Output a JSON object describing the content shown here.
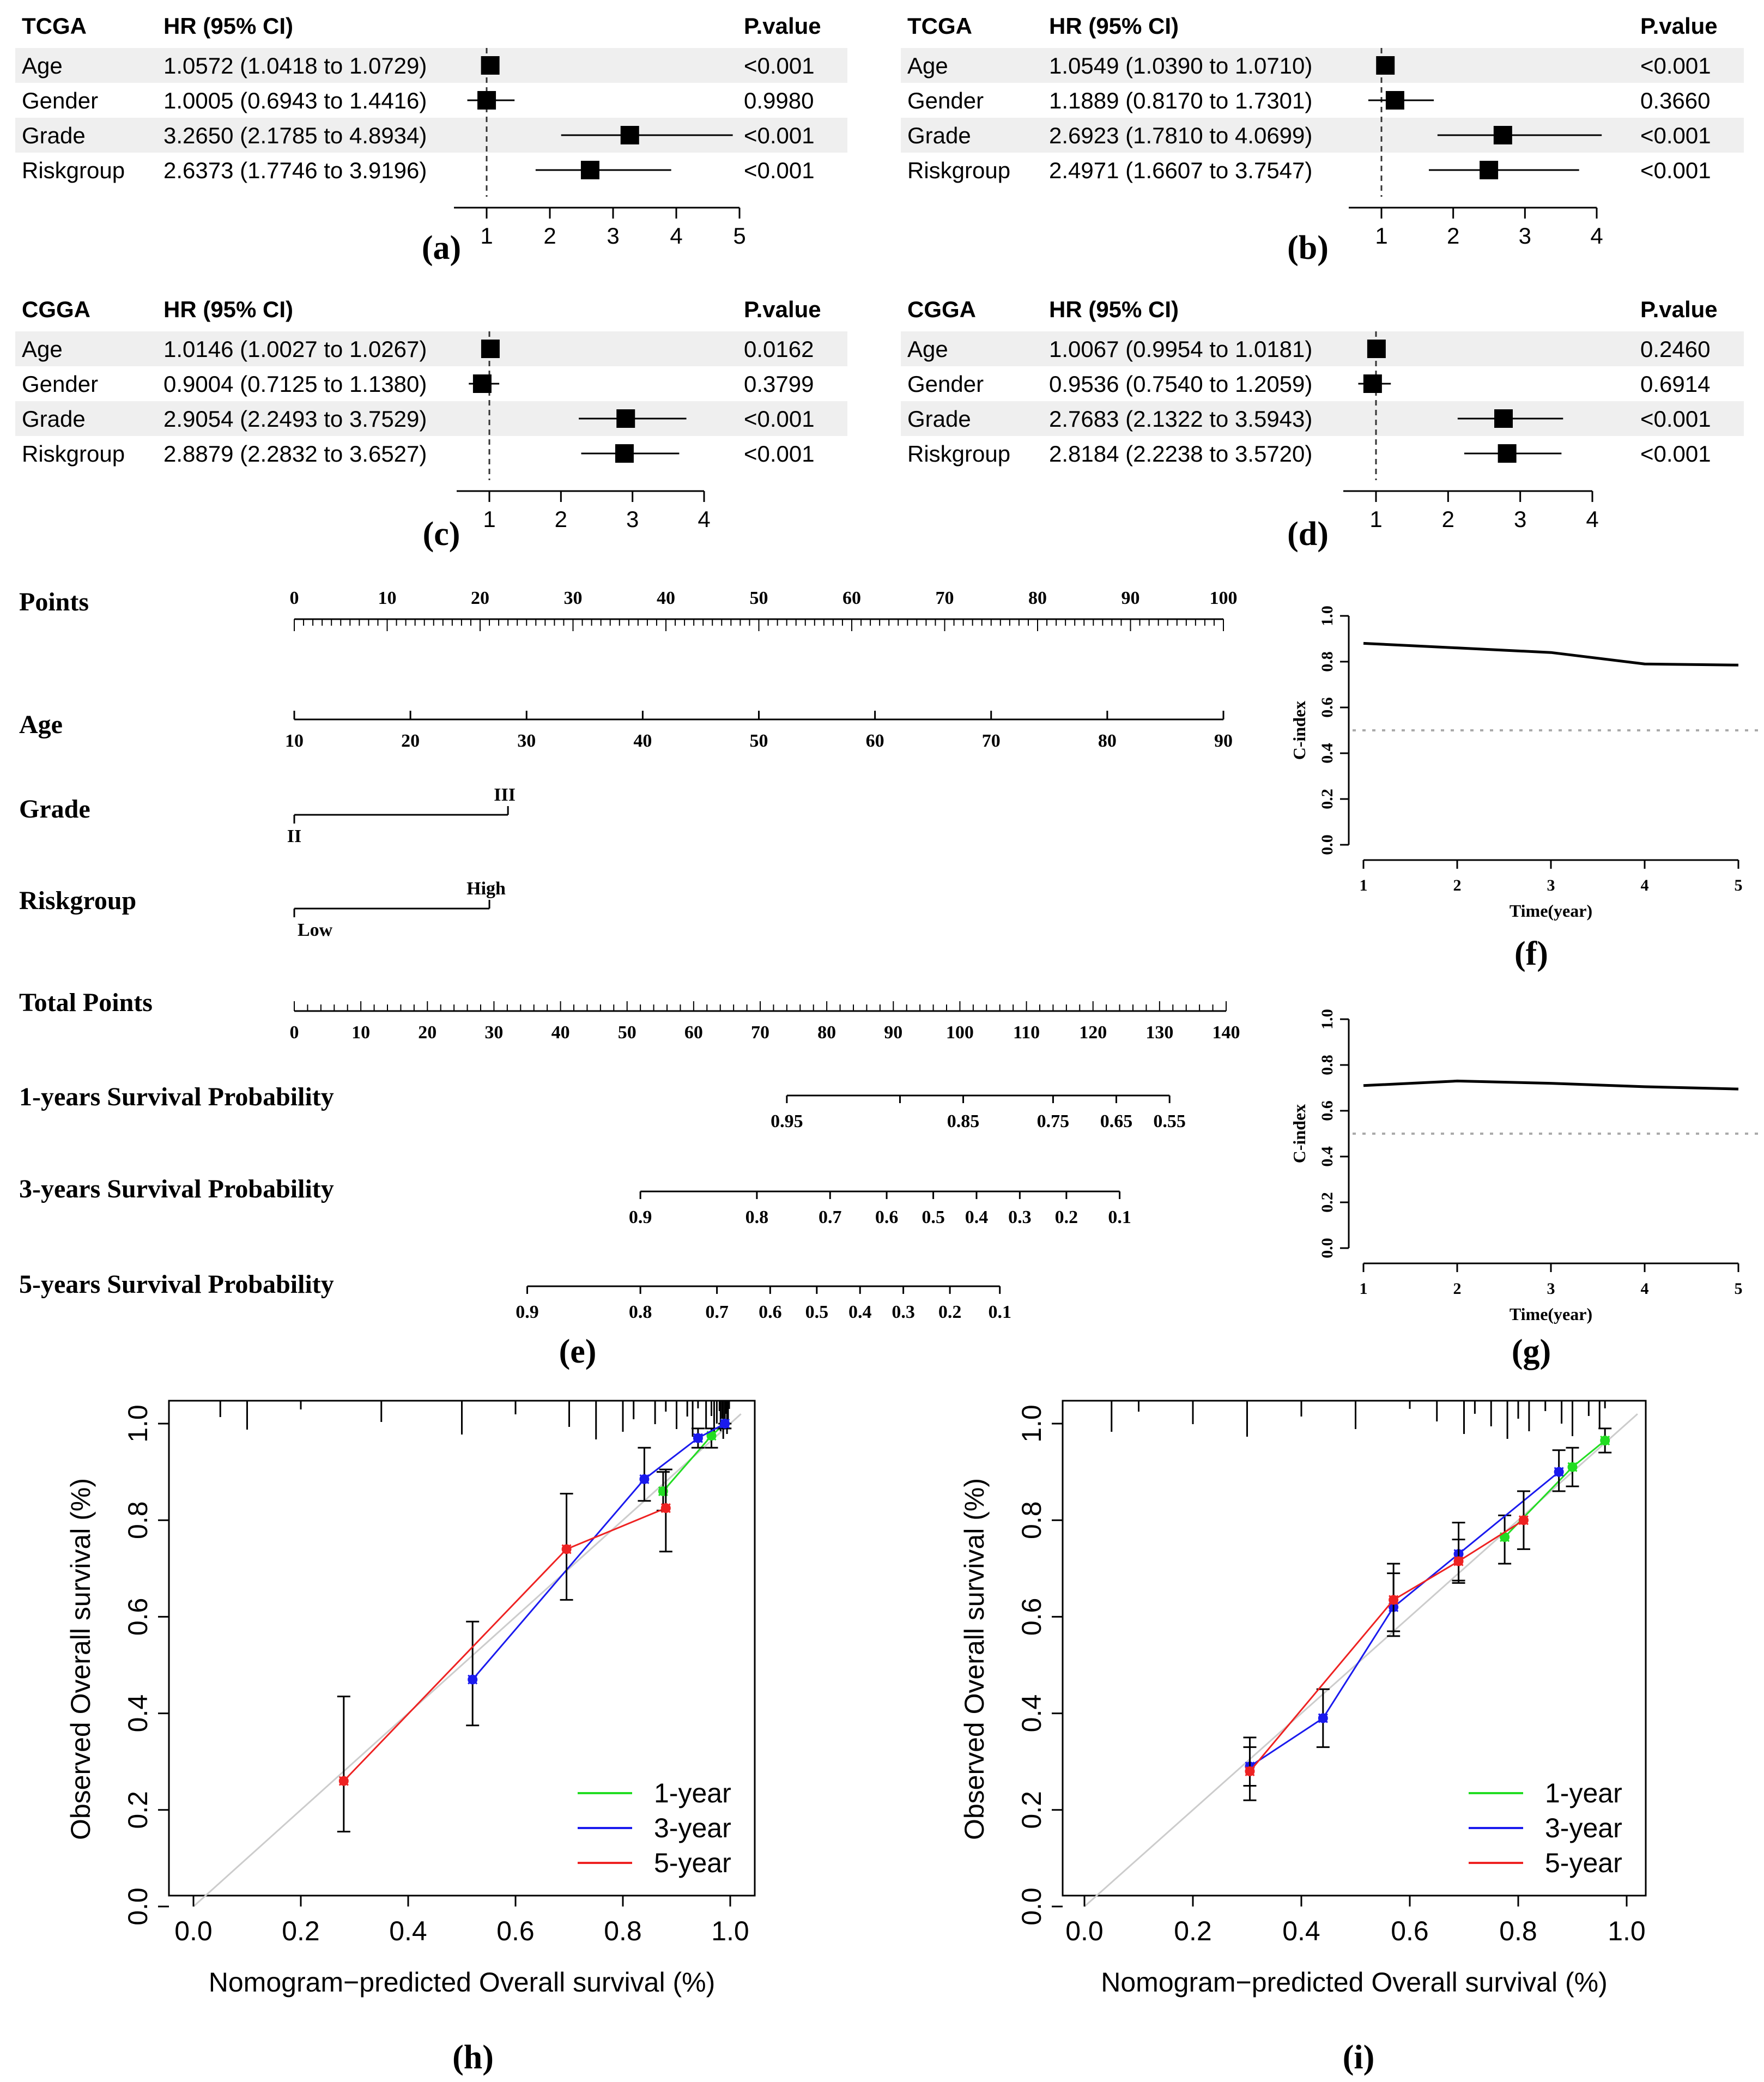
{
  "panel_labels": {
    "a": "(a)",
    "b": "(b)",
    "c": "(c)",
    "d": "(d)",
    "e": "(e)",
    "f": "(f)",
    "g": "(g)",
    "h": "(h)",
    "i": "(i)"
  },
  "colors": {
    "band": "#efefef",
    "one_year": "#22dd22",
    "three_year": "#1a1aee",
    "five_year": "#ee2222",
    "diag": "#cccccc",
    "marker": "#000000"
  },
  "chart_data": [
    {
      "id": "a",
      "type": "forest",
      "cohort": "TCGA",
      "hr_header": "HR (95% CI)",
      "p_header": "P.value",
      "axis": {
        "min": 1,
        "max": 5,
        "ticks": [
          1,
          2,
          3,
          4,
          5
        ],
        "ref": 1
      },
      "rows": [
        {
          "name": "Age",
          "hr_text": "1.0572 (1.0418 to 1.0729)",
          "p": "<0.001",
          "hr": 1.0572,
          "lo": 1.0418,
          "hi": 1.0729
        },
        {
          "name": "Gender",
          "hr_text": "1.0005 (0.6943 to 1.4416)",
          "p": "0.9980",
          "hr": 1.0005,
          "lo": 0.6943,
          "hi": 1.4416
        },
        {
          "name": "Grade",
          "hr_text": "3.2650 (2.1785 to 4.8934)",
          "p": "<0.001",
          "hr": 3.265,
          "lo": 2.1785,
          "hi": 4.8934
        },
        {
          "name": "Riskgroup",
          "hr_text": "2.6373 (1.7746 to 3.9196)",
          "p": "<0.001",
          "hr": 2.6373,
          "lo": 1.7746,
          "hi": 3.9196
        }
      ]
    },
    {
      "id": "b",
      "type": "forest",
      "cohort": "TCGA",
      "hr_header": "HR (95% CI)",
      "p_header": "P.value",
      "axis": {
        "min": 1,
        "max": 4,
        "ticks": [
          1,
          2,
          3,
          4
        ],
        "ref": 1
      },
      "rows": [
        {
          "name": "Age",
          "hr_text": "1.0549 (1.0390 to 1.0710)",
          "p": "<0.001",
          "hr": 1.0549,
          "lo": 1.039,
          "hi": 1.071
        },
        {
          "name": "Gender",
          "hr_text": "1.1889 (0.8170 to 1.7301)",
          "p": "0.3660",
          "hr": 1.1889,
          "lo": 0.817,
          "hi": 1.7301
        },
        {
          "name": "Grade",
          "hr_text": "2.6923 (1.7810 to 4.0699)",
          "p": "<0.001",
          "hr": 2.6923,
          "lo": 1.781,
          "hi": 4.0699
        },
        {
          "name": "Riskgroup",
          "hr_text": "2.4971 (1.6607 to 3.7547)",
          "p": "<0.001",
          "hr": 2.4971,
          "lo": 1.6607,
          "hi": 3.7547
        }
      ]
    },
    {
      "id": "c",
      "type": "forest",
      "cohort": "CGGA",
      "hr_header": "HR (95% CI)",
      "p_header": "P.value",
      "axis": {
        "min": 1,
        "max": 4,
        "ticks": [
          1,
          2,
          3,
          4
        ],
        "ref": 1
      },
      "rows": [
        {
          "name": "Age",
          "hr_text": "1.0146 (1.0027 to 1.0267)",
          "p": "0.0162",
          "hr": 1.0146,
          "lo": 1.0027,
          "hi": 1.0267
        },
        {
          "name": "Gender",
          "hr_text": "0.9004 (0.7125 to 1.1380)",
          "p": "0.3799",
          "hr": 0.9004,
          "lo": 0.7125,
          "hi": 1.138
        },
        {
          "name": "Grade",
          "hr_text": "2.9054 (2.2493 to 3.7529)",
          "p": "<0.001",
          "hr": 2.9054,
          "lo": 2.2493,
          "hi": 3.7529
        },
        {
          "name": "Riskgroup",
          "hr_text": "2.8879 (2.2832 to 3.6527)",
          "p": "<0.001",
          "hr": 2.8879,
          "lo": 2.2832,
          "hi": 3.6527
        }
      ]
    },
    {
      "id": "d",
      "type": "forest",
      "cohort": "CGGA",
      "hr_header": "HR (95% CI)",
      "p_header": "P.value",
      "axis": {
        "min": 1,
        "max": 4,
        "ticks": [
          1,
          2,
          3,
          4
        ],
        "ref": 1
      },
      "rows": [
        {
          "name": "Age",
          "hr_text": "1.0067 (0.9954 to 1.0181)",
          "p": "0.2460",
          "hr": 1.0067,
          "lo": 0.9954,
          "hi": 1.0181
        },
        {
          "name": "Gender",
          "hr_text": "0.9536 (0.7540 to 1.2059)",
          "p": "0.6914",
          "hr": 0.9536,
          "lo": 0.754,
          "hi": 1.2059
        },
        {
          "name": "Grade",
          "hr_text": "2.7683 (2.1322 to 3.5943)",
          "p": "<0.001",
          "hr": 2.7683,
          "lo": 2.1322,
          "hi": 3.5943
        },
        {
          "name": "Riskgroup",
          "hr_text": "2.8184 (2.2238 to 3.5720)",
          "p": "<0.001",
          "hr": 2.8184,
          "lo": 2.2238,
          "hi": 3.572
        }
      ]
    },
    {
      "id": "e",
      "type": "nomogram",
      "points_range": [
        0,
        100
      ],
      "rows": [
        {
          "label": "Points",
          "kind": "points",
          "ticks": [
            0,
            10,
            20,
            30,
            40,
            50,
            60,
            70,
            80,
            90,
            100
          ]
        },
        {
          "label": "Age",
          "kind": "age",
          "points_range": [
            0,
            100
          ],
          "labels": [
            10,
            20,
            30,
            40,
            50,
            60,
            70,
            80,
            90
          ]
        },
        {
          "label": "Grade",
          "kind": "cat",
          "points": [
            0,
            23
          ],
          "low": "II",
          "high": "III"
        },
        {
          "label": "Riskgroup",
          "kind": "cat",
          "points": [
            0,
            21
          ],
          "low": "Low",
          "high": "High"
        },
        {
          "label": "Total Points",
          "kind": "total",
          "range": [
            0,
            140
          ],
          "labels": [
            0,
            10,
            20,
            30,
            40,
            50,
            60,
            70,
            80,
            90,
            100,
            110,
            120,
            130,
            140
          ]
        },
        {
          "label": "1-years Survival Probability",
          "kind": "surv",
          "line_total": [
            74,
            131.5
          ],
          "labels": [
            "0.95",
            "0.85",
            "0.75",
            "0.65",
            "0.55"
          ],
          "label_total": [
            74,
            100.5,
            114,
            123.5,
            131.5
          ],
          "minor_total": [
            91
          ]
        },
        {
          "label": "3-years Survival Probability",
          "kind": "surv",
          "line_total": [
            52,
            124
          ],
          "labels": [
            "0.9",
            "0.8",
            "0.7",
            "0.6",
            "0.5",
            "0.4",
            "0.3",
            "0.2",
            "0.1"
          ],
          "label_total": [
            52,
            69.5,
            80.5,
            89,
            96,
            102.5,
            109,
            116,
            124
          ]
        },
        {
          "label": "5-years Survival Probability",
          "kind": "surv",
          "line_total": [
            35,
            106
          ],
          "labels": [
            "0.9",
            "0.8",
            "0.7",
            "0.6",
            "0.5",
            "0.4",
            "0.3",
            "0.2",
            "0.1"
          ],
          "label_total": [
            35,
            52,
            63.5,
            71.5,
            78.5,
            85,
            91.5,
            98.5,
            106
          ]
        }
      ]
    },
    {
      "id": "f",
      "type": "line",
      "xlabel": "Time(year)",
      "ylabel": "C-index",
      "xlim": [
        1,
        5
      ],
      "ylim": [
        0,
        1
      ],
      "x": [
        1,
        2,
        3,
        4,
        5
      ],
      "y": [
        0.88,
        0.86,
        0.84,
        0.79,
        0.785
      ],
      "reference": 0.5,
      "xticks": [
        1,
        2,
        3,
        4,
        5
      ],
      "yticks": [
        "0.0",
        "0.2",
        "0.4",
        "0.6",
        "0.8",
        "1.0"
      ]
    },
    {
      "id": "g",
      "type": "line",
      "xlabel": "Time(year)",
      "ylabel": "C-index",
      "xlim": [
        1,
        5
      ],
      "ylim": [
        0,
        1
      ],
      "x": [
        1,
        2,
        3,
        4,
        5
      ],
      "y": [
        0.71,
        0.73,
        0.72,
        0.705,
        0.695
      ],
      "reference": 0.5,
      "xticks": [
        1,
        2,
        3,
        4,
        5
      ],
      "yticks": [
        "0.0",
        "0.2",
        "0.4",
        "0.6",
        "0.8",
        "1.0"
      ]
    },
    {
      "id": "h",
      "type": "calibration",
      "xlabel": "Nomogram−predicted Overall survival (%)",
      "ylabel": "Observed Overall survival (%)",
      "xlim": [
        0,
        1
      ],
      "ylim": [
        0,
        1
      ],
      "ticks": [
        "0.0",
        "0.2",
        "0.4",
        "0.6",
        "0.8",
        "1.0"
      ],
      "legend": [
        "1-year",
        "3-year",
        "5-year"
      ],
      "series": [
        {
          "name": "1-year",
          "x": [
            0.875,
            0.965,
            0.99
          ],
          "y": [
            0.86,
            0.975,
            1.0
          ],
          "err": [
            [
              0.82,
              0.9
            ],
            [
              0.95,
              0.99
            ],
            [
              0.99,
              1.0
            ]
          ]
        },
        {
          "name": "3-year",
          "x": [
            0.52,
            0.84,
            0.94,
            0.99
          ],
          "y": [
            0.47,
            0.885,
            0.97,
            1.0
          ],
          "err": [
            [
              0.375,
              0.59
            ],
            [
              0.84,
              0.95
            ],
            [
              0.95,
              0.99
            ],
            [
              0.99,
              1.0
            ]
          ]
        },
        {
          "name": "5-year",
          "x": [
            0.28,
            0.695,
            0.88
          ],
          "y": [
            0.26,
            0.74,
            0.825
          ],
          "err": [
            [
              0.155,
              0.435
            ],
            [
              0.635,
              0.855
            ],
            [
              0.735,
              0.905
            ]
          ]
        }
      ],
      "rug": [
        0.94,
        0.955,
        0.965,
        0.97,
        0.975,
        0.98,
        0.982,
        0.985,
        0.987,
        0.99,
        0.992,
        0.994,
        0.996,
        0.998,
        0.9,
        0.92,
        0.93,
        0.86,
        0.88,
        0.8,
        0.82,
        0.75,
        0.7,
        0.6,
        0.5,
        0.35,
        0.2,
        0.1,
        0.05
      ]
    },
    {
      "id": "i",
      "type": "calibration",
      "xlabel": "Nomogram−predicted Overall survival (%)",
      "ylabel": "Observed Overall survival (%)",
      "xlim": [
        0,
        1
      ],
      "ylim": [
        0,
        1
      ],
      "ticks": [
        "0.0",
        "0.2",
        "0.4",
        "0.6",
        "0.8",
        "1.0"
      ],
      "legend": [
        "1-year",
        "3-year",
        "5-year"
      ],
      "series": [
        {
          "name": "1-year",
          "x": [
            0.775,
            0.9,
            0.96
          ],
          "y": [
            0.765,
            0.91,
            0.965
          ],
          "err": [
            [
              0.71,
              0.81
            ],
            [
              0.87,
              0.95
            ],
            [
              0.94,
              0.99
            ]
          ]
        },
        {
          "name": "3-year",
          "x": [
            0.305,
            0.44,
            0.57,
            0.69,
            0.875
          ],
          "y": [
            0.29,
            0.39,
            0.62,
            0.73,
            0.9
          ],
          "err": [
            [
              0.25,
              0.33
            ],
            [
              0.33,
              0.45
            ],
            [
              0.56,
              0.69
            ],
            [
              0.675,
              0.795
            ],
            [
              0.86,
              0.945
            ]
          ]
        },
        {
          "name": "5-year",
          "x": [
            0.305,
            0.57,
            0.69,
            0.81
          ],
          "y": [
            0.28,
            0.635,
            0.715,
            0.8
          ],
          "err": [
            [
              0.22,
              0.35
            ],
            [
              0.57,
              0.71
            ],
            [
              0.67,
              0.76
            ],
            [
              0.74,
              0.86
            ]
          ]
        }
      ],
      "rug": [
        0.96,
        0.95,
        0.93,
        0.9,
        0.88,
        0.85,
        0.82,
        0.8,
        0.78,
        0.75,
        0.72,
        0.7,
        0.65,
        0.6,
        0.5,
        0.4,
        0.3,
        0.2,
        0.1,
        0.05
      ]
    }
  ]
}
